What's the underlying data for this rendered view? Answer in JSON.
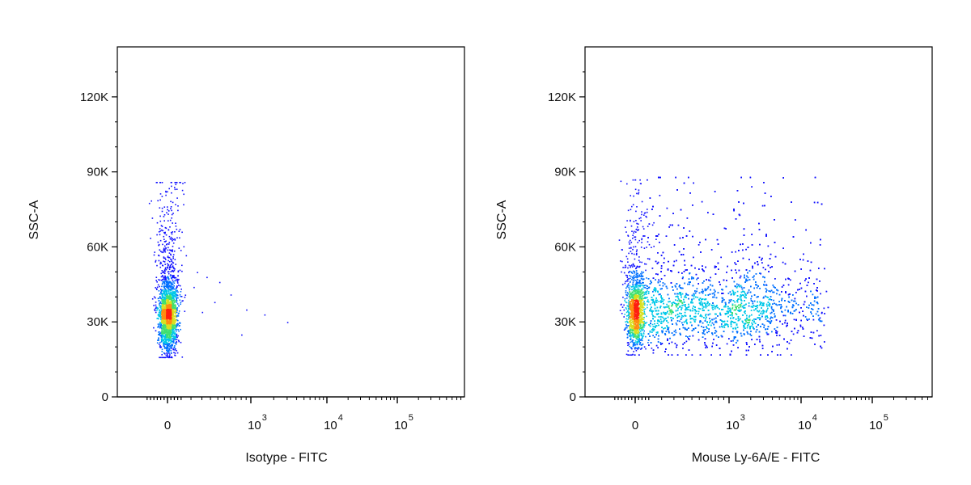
{
  "colors": {
    "background": "#ffffff",
    "axis": "#000000",
    "density_low": "#0000ff",
    "density_mid": "#00ffff",
    "density_high": "#ffff00",
    "density_peak": "#ff0000"
  },
  "chart_data": [
    {
      "type": "scatter",
      "style": "flow cytometry density dot plot (blue low → green/yellow → red high)",
      "xlabel": "Isotype - FITC",
      "ylabel": "SSC-A",
      "x_scale": "biexponential",
      "x_ticks": [
        {
          "base": "0",
          "exp": ""
        },
        {
          "base": "10",
          "exp": "3"
        },
        {
          "base": "10",
          "exp": "4"
        },
        {
          "base": "10",
          "exp": "5"
        }
      ],
      "y_ticks": [
        "0",
        "30K",
        "60K",
        "90K",
        "120K"
      ],
      "ylim": [
        0,
        140000
      ],
      "grid": false,
      "populations": [
        {
          "name": "",
          "x_center": 0,
          "x_spread": "narrow",
          "y_center": 32000,
          "y_range": [
            16000,
            86000
          ],
          "events": 2200
        }
      ],
      "outliers": [
        {
          "x": 150,
          "y": 50000
        },
        {
          "x": 250,
          "y": 48000
        },
        {
          "x": 420,
          "y": 46000
        },
        {
          "x": 600,
          "y": 41000
        },
        {
          "x": 350,
          "y": 38000
        },
        {
          "x": 900,
          "y": 35000
        },
        {
          "x": 1500,
          "y": 33000
        },
        {
          "x": 3000,
          "y": 30000
        },
        {
          "x": 800,
          "y": 25000
        },
        {
          "x": 200,
          "y": 34000
        },
        {
          "x": 120,
          "y": 44000
        }
      ]
    },
    {
      "type": "scatter",
      "style": "flow cytometry density dot plot (blue low → green/yellow → red high)",
      "xlabel": "Mouse Ly-6A/E - FITC",
      "ylabel": "SSC-A",
      "x_scale": "biexponential",
      "x_ticks": [
        {
          "base": "0",
          "exp": ""
        },
        {
          "base": "10",
          "exp": "3"
        },
        {
          "base": "10",
          "exp": "4"
        },
        {
          "base": "10",
          "exp": "5"
        }
      ],
      "y_ticks": [
        "0",
        "30K",
        "60K",
        "90K",
        "120K"
      ],
      "ylim": [
        0,
        140000
      ],
      "grid": false,
      "populations": [
        {
          "name": "",
          "x_center": 0,
          "x_spread": "narrow",
          "y_center": 33000,
          "y_range": [
            17000,
            87000
          ],
          "events": 1400
        },
        {
          "name": "",
          "x_range": [
            30,
            20000
          ],
          "y_center": 34000,
          "y_range": [
            17000,
            88000
          ],
          "events": 5200
        }
      ],
      "outliers": []
    }
  ]
}
